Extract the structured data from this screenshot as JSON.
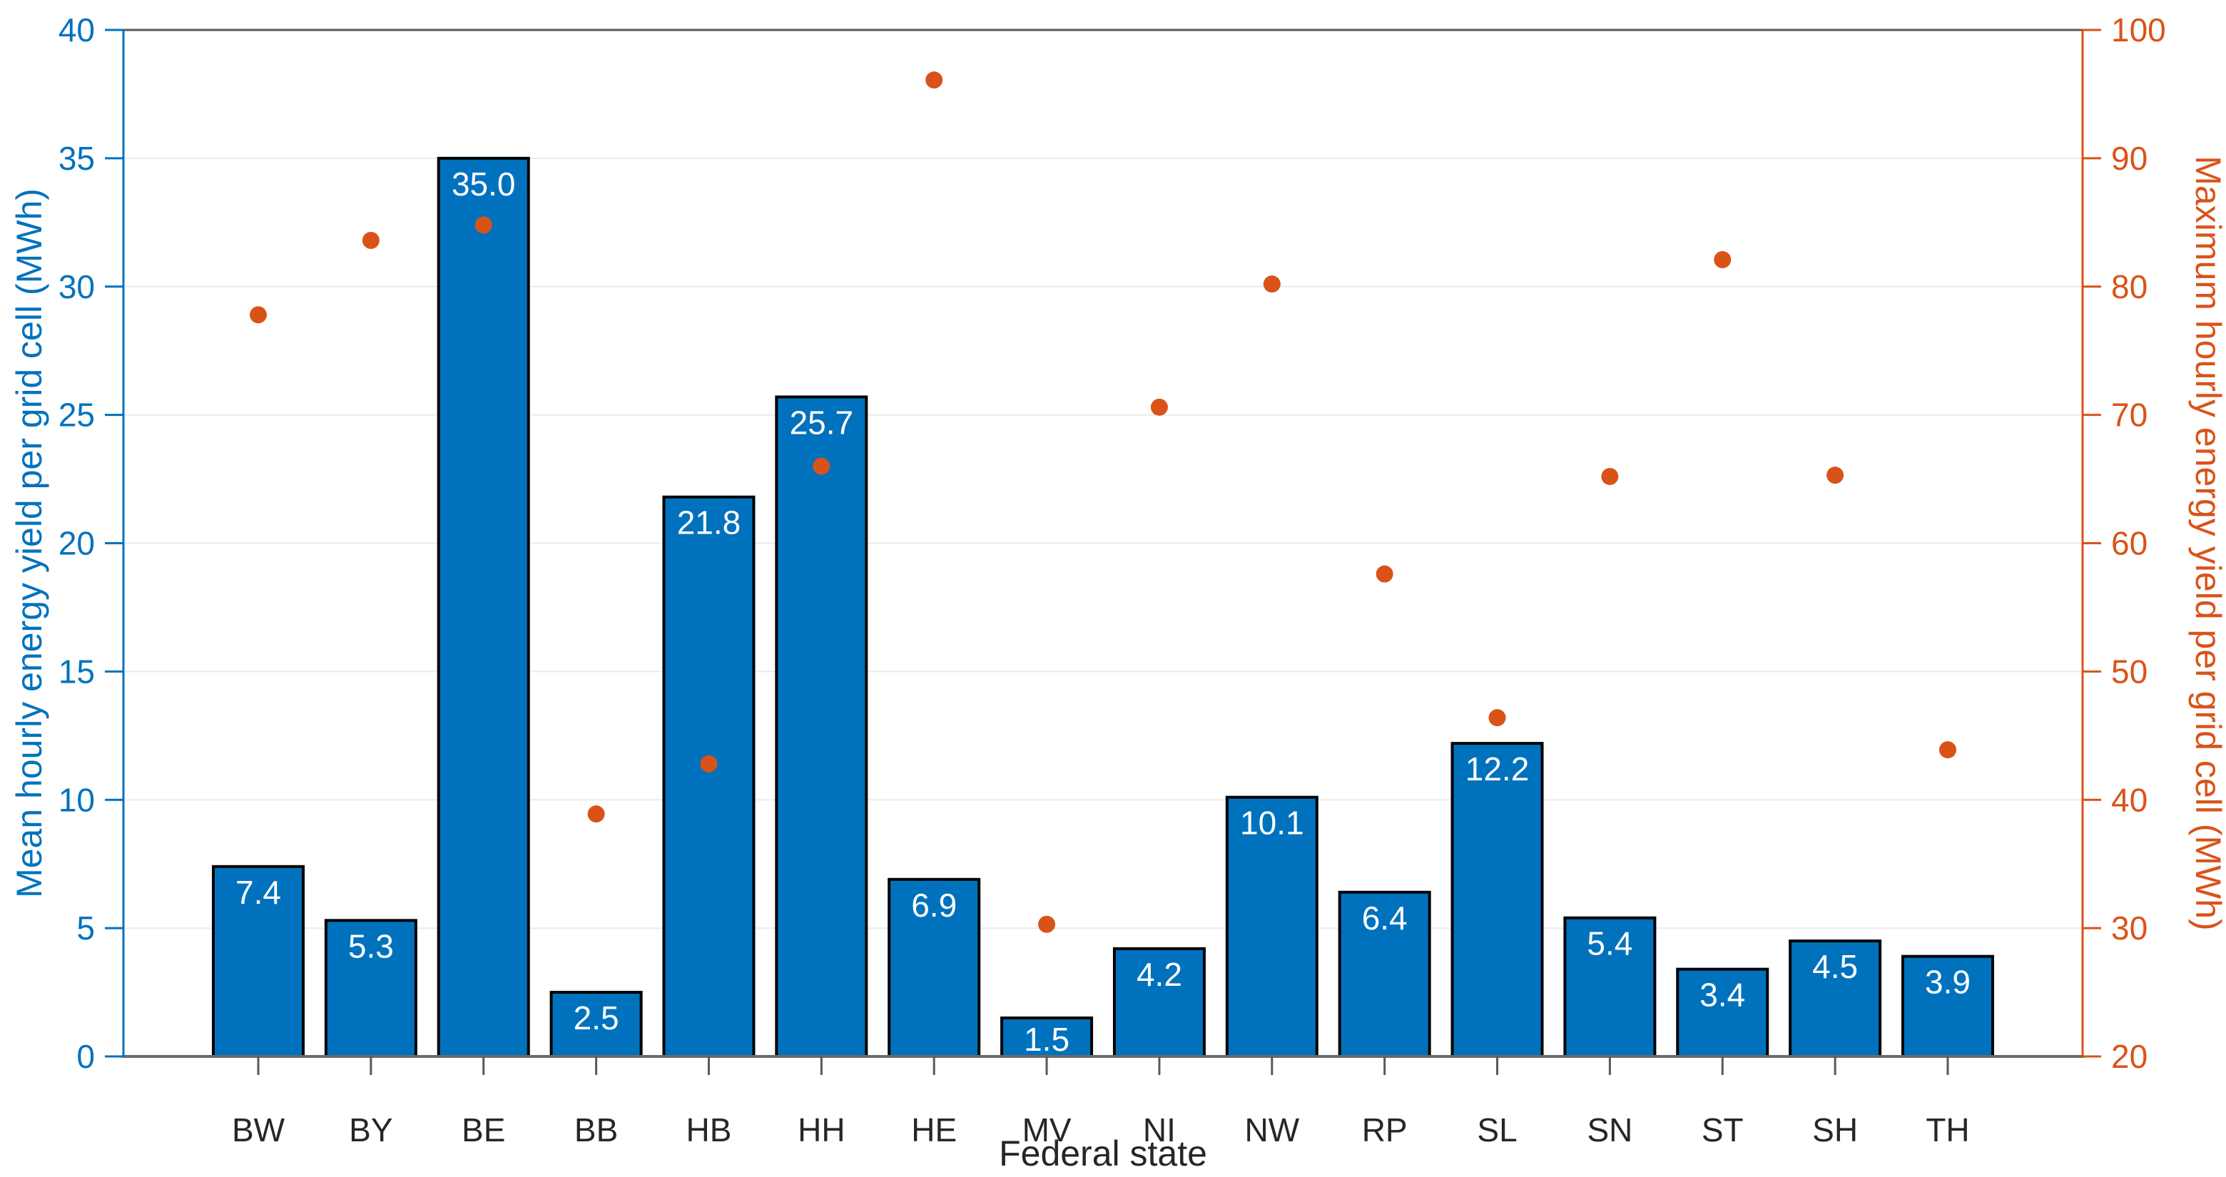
{
  "chart_data": {
    "type": "bar",
    "subtype": "bar+scatter-dual-axis",
    "categories": [
      "BW",
      "BY",
      "BE",
      "BB",
      "HB",
      "HH",
      "HE",
      "MV",
      "NI",
      "NW",
      "RP",
      "SL",
      "SN",
      "ST",
      "SH",
      "TH"
    ],
    "series": [
      {
        "name": "Mean hourly energy yield per grid cell (MWh)",
        "type": "bar",
        "axis": "left",
        "values": [
          7.4,
          5.3,
          35.0,
          2.5,
          21.8,
          25.7,
          6.9,
          1.5,
          4.2,
          10.1,
          6.4,
          12.2,
          5.4,
          3.4,
          4.5,
          3.9
        ],
        "labels": [
          "7.4",
          "5.3",
          "35.0",
          "2.5",
          "21.8",
          "25.7",
          "6.9",
          "1.5",
          "4.2",
          "10.1",
          "6.4",
          "12.2",
          "5.4",
          "3.4",
          "4.5",
          "3.9"
        ],
        "color": "#0072BD",
        "edge_color": "#000000",
        "label_color": "#FFFFFF"
      },
      {
        "name": "Maximum hourly energy yield per grid cell (MWh)",
        "type": "scatter",
        "axis": "right",
        "values": [
          77.8,
          83.6,
          84.8,
          38.9,
          42.8,
          66.0,
          96.1,
          30.3,
          70.6,
          80.2,
          57.6,
          46.4,
          65.2,
          82.1,
          65.3,
          43.9
        ],
        "color": "#D95319"
      }
    ],
    "xlabel": "Federal state",
    "x_tick_labels": [
      "BW",
      "BY",
      "BE",
      "BB",
      "HB",
      "HH",
      "HE",
      "MV",
      "NI",
      "NW",
      "RP",
      "SL",
      "SN",
      "ST",
      "SH",
      "TH"
    ],
    "left_axis": {
      "label": "Mean hourly energy yield per grid cell (MWh)",
      "min": 0,
      "max": 40,
      "ticks": [
        0,
        5,
        10,
        15,
        20,
        25,
        30,
        35,
        40
      ],
      "color": "#0072BD"
    },
    "right_axis": {
      "label": "Maximum hourly energy yield per grid cell (MWh)",
      "min": 20,
      "max": 100,
      "ticks": [
        20,
        30,
        40,
        50,
        60,
        70,
        80,
        90,
        100
      ],
      "color": "#D95319"
    },
    "grid": true,
    "grid_color": "#EBEBEB",
    "spine_color": "#595959",
    "x_text_color": "#262626",
    "legend": "none"
  }
}
